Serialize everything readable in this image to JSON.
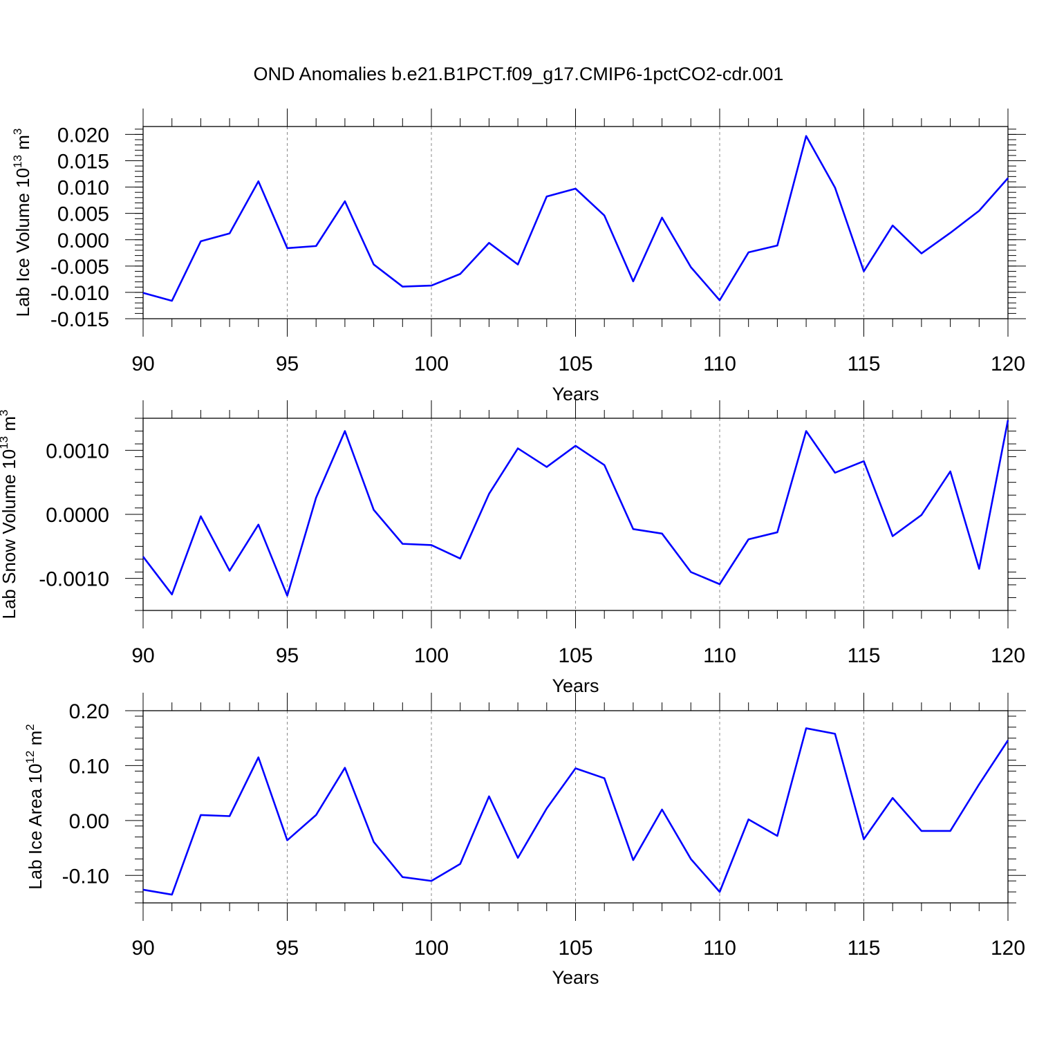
{
  "figure": {
    "title": "OND Anomalies b.e21.B1PCT.f09_g17.CMIP6-1pctCO2-cdr.001",
    "line_color": "#0000ff"
  },
  "chart_data": [
    {
      "type": "line",
      "ylabel": "Lab Ice Volume 10",
      "ylabel_exp": "13",
      "ylabel_unit": " m",
      "ylabel_unit_exp": "3",
      "xlabel": "Years",
      "xlim": [
        90,
        120
      ],
      "ylim": [
        -0.015,
        0.0215
      ],
      "xticks": [
        90,
        95,
        100,
        105,
        110,
        115,
        120
      ],
      "xtick_labels": [
        "90",
        "95",
        "100",
        "105",
        "110",
        "115",
        "120"
      ],
      "yticks": [
        -0.015,
        -0.01,
        -0.005,
        0.0,
        0.005,
        0.01,
        0.015,
        0.02
      ],
      "ytick_labels": [
        "-0.015",
        "-0.010",
        "-0.005",
        "0.000",
        "0.005",
        "0.010",
        "0.015",
        "0.020"
      ],
      "y_minor_step": 0.001,
      "x": [
        90,
        91,
        92,
        93,
        94,
        95,
        96,
        97,
        98,
        99,
        100,
        101,
        102,
        103,
        104,
        105,
        106,
        107,
        108,
        109,
        110,
        111,
        112,
        113,
        114,
        115,
        116,
        117,
        118,
        119,
        120
      ],
      "series": [
        {
          "name": "Lab Ice Volume",
          "values": [
            -0.0101,
            -0.0116,
            -0.0003,
            0.0012,
            0.0111,
            -0.0016,
            -0.0012,
            0.0073,
            -0.0047,
            -0.0089,
            -0.0087,
            -0.0065,
            -0.0006,
            -0.0047,
            0.0082,
            0.0097,
            0.0046,
            -0.0079,
            0.0042,
            -0.0052,
            -0.0115,
            -0.0024,
            -0.0011,
            0.0197,
            0.0099,
            -0.006,
            0.0027,
            -0.0026,
            0.0013,
            0.0055,
            0.0117
          ]
        }
      ]
    },
    {
      "type": "line",
      "ylabel": "Lab Snow Volume 10",
      "ylabel_exp": "13",
      "ylabel_unit": " m",
      "ylabel_unit_exp": "3",
      "xlabel": "Years",
      "xlim": [
        90,
        120
      ],
      "ylim": [
        -0.0015,
        0.0015
      ],
      "xticks": [
        90,
        95,
        100,
        105,
        110,
        115,
        120
      ],
      "xtick_labels": [
        "90",
        "95",
        "100",
        "105",
        "110",
        "115",
        "120"
      ],
      "yticks": [
        -0.001,
        0.0,
        0.001
      ],
      "ytick_labels": [
        "-0.0010",
        "0.0000",
        "0.0010"
      ],
      "y_minor_step": 0.0002,
      "x": [
        90,
        91,
        92,
        93,
        94,
        95,
        96,
        97,
        98,
        99,
        100,
        101,
        102,
        103,
        104,
        105,
        106,
        107,
        108,
        109,
        110,
        111,
        112,
        113,
        114,
        115,
        116,
        117,
        118,
        119,
        120
      ],
      "series": [
        {
          "name": "Lab Snow Volume",
          "values": [
            -0.00066,
            -0.00125,
            -3e-05,
            -0.00088,
            -0.00016,
            -0.00127,
            0.00026,
            0.0013,
            7e-05,
            -0.00046,
            -0.00048,
            -0.00069,
            0.00032,
            0.00103,
            0.00074,
            0.00107,
            0.00077,
            -0.00023,
            -0.0003,
            -0.0009,
            -0.00109,
            -0.00039,
            -0.00028,
            0.0013,
            0.00065,
            0.00083,
            -0.00034,
            -1e-05,
            0.00067,
            -0.00085,
            0.00147
          ]
        }
      ]
    },
    {
      "type": "line",
      "ylabel": "Lab Ice Area 10",
      "ylabel_exp": "12",
      "ylabel_unit": " m",
      "ylabel_unit_exp": "2",
      "xlabel": "Years",
      "xlim": [
        90,
        120
      ],
      "ylim": [
        -0.15,
        0.2
      ],
      "xticks": [
        90,
        95,
        100,
        105,
        110,
        115,
        120
      ],
      "xtick_labels": [
        "90",
        "95",
        "100",
        "105",
        "110",
        "115",
        "120"
      ],
      "yticks": [
        -0.1,
        0.0,
        0.1,
        0.2
      ],
      "ytick_labels": [
        "-0.10",
        "0.00",
        "0.10",
        "0.20"
      ],
      "y_minor_step": 0.02,
      "x": [
        90,
        91,
        92,
        93,
        94,
        95,
        96,
        97,
        98,
        99,
        100,
        101,
        102,
        103,
        104,
        105,
        106,
        107,
        108,
        109,
        110,
        111,
        112,
        113,
        114,
        115,
        116,
        117,
        118,
        119,
        120
      ],
      "series": [
        {
          "name": "Lab Ice Area",
          "values": [
            -0.126,
            -0.135,
            0.01,
            0.008,
            0.115,
            -0.036,
            0.01,
            0.096,
            -0.039,
            -0.103,
            -0.11,
            -0.079,
            0.044,
            -0.068,
            0.022,
            0.095,
            0.077,
            -0.072,
            0.02,
            -0.07,
            -0.13,
            0.002,
            -0.028,
            0.168,
            0.158,
            -0.034,
            0.041,
            -0.019,
            -0.019,
            0.066,
            0.146
          ]
        }
      ]
    }
  ]
}
